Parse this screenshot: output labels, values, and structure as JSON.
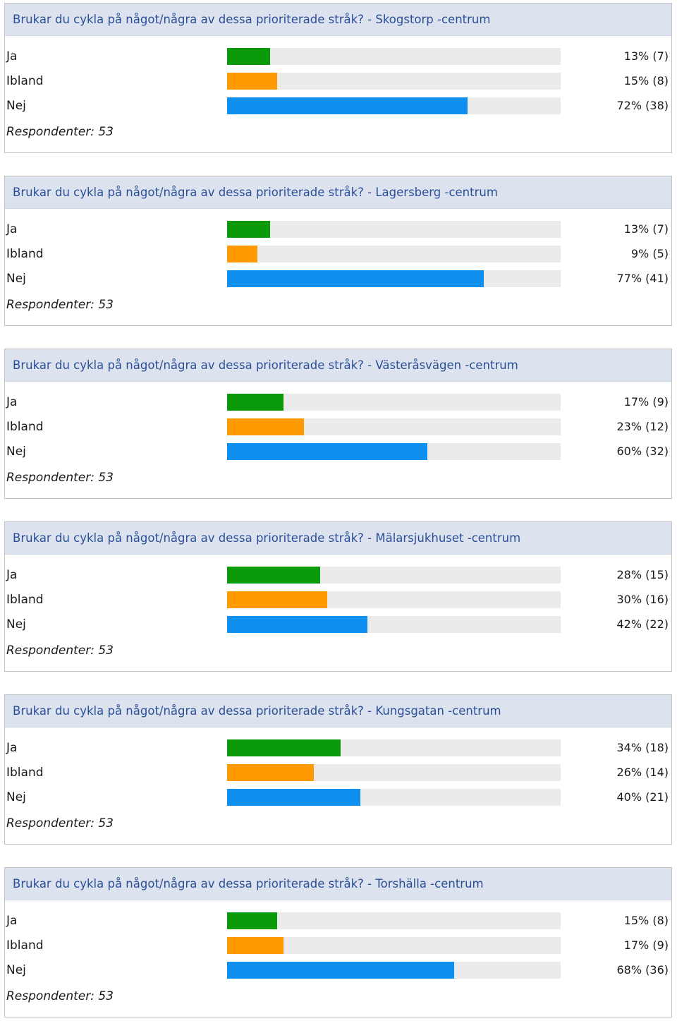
{
  "colors": {
    "ja": "#0a9a0a",
    "ibland": "#ff9a00",
    "nej": "#0f8ff0",
    "track": "#ebebeb",
    "header_bg": "#dde3ee",
    "header_text": "#2a4f98"
  },
  "chart_data": [
    {
      "type": "bar",
      "title": "Brukar du cykla på något/några av dessa prioriterade stråk? - Skogstorp -centrum",
      "categories": [
        "Ja",
        "Ibland",
        "Nej"
      ],
      "values": [
        13,
        15,
        72
      ],
      "counts": [
        7,
        8,
        38
      ],
      "value_labels": [
        "13% (7)",
        "15% (8)",
        "72% (38)"
      ],
      "respondents_label": "Respondenter: 53",
      "xlim": [
        0,
        100
      ]
    },
    {
      "type": "bar",
      "title": "Brukar du cykla på något/några av dessa prioriterade stråk? - Lagersberg -centrum",
      "categories": [
        "Ja",
        "Ibland",
        "Nej"
      ],
      "values": [
        13,
        9,
        77
      ],
      "counts": [
        7,
        5,
        41
      ],
      "value_labels": [
        "13% (7)",
        "9% (5)",
        "77% (41)"
      ],
      "respondents_label": "Respondenter: 53",
      "xlim": [
        0,
        100
      ]
    },
    {
      "type": "bar",
      "title": "Brukar du cykla på något/några av dessa prioriterade stråk? - Västeråsvägen -centrum",
      "categories": [
        "Ja",
        "Ibland",
        "Nej"
      ],
      "values": [
        17,
        23,
        60
      ],
      "counts": [
        9,
        12,
        32
      ],
      "value_labels": [
        "17% (9)",
        "23% (12)",
        "60% (32)"
      ],
      "respondents_label": "Respondenter: 53",
      "xlim": [
        0,
        100
      ]
    },
    {
      "type": "bar",
      "title": "Brukar du cykla på något/några av dessa prioriterade stråk? - Mälarsjukhuset -centrum",
      "categories": [
        "Ja",
        "Ibland",
        "Nej"
      ],
      "values": [
        28,
        30,
        42
      ],
      "counts": [
        15,
        16,
        22
      ],
      "value_labels": [
        "28% (15)",
        "30% (16)",
        "42% (22)"
      ],
      "respondents_label": "Respondenter: 53",
      "xlim": [
        0,
        100
      ]
    },
    {
      "type": "bar",
      "title": "Brukar du cykla på något/några av dessa prioriterade stråk? - Kungsgatan -centrum",
      "categories": [
        "Ja",
        "Ibland",
        "Nej"
      ],
      "values": [
        34,
        26,
        40
      ],
      "counts": [
        18,
        14,
        21
      ],
      "value_labels": [
        "34% (18)",
        "26% (14)",
        "40% (21)"
      ],
      "respondents_label": "Respondenter: 53",
      "xlim": [
        0,
        100
      ]
    },
    {
      "type": "bar",
      "title": "Brukar du cykla på något/några av dessa prioriterade stråk? - Torshälla -centrum",
      "categories": [
        "Ja",
        "Ibland",
        "Nej"
      ],
      "values": [
        15,
        17,
        68
      ],
      "counts": [
        8,
        9,
        36
      ],
      "value_labels": [
        "15% (8)",
        "17% (9)",
        "68% (36)"
      ],
      "respondents_label": "Respondenter: 53",
      "xlim": [
        0,
        100
      ]
    }
  ]
}
